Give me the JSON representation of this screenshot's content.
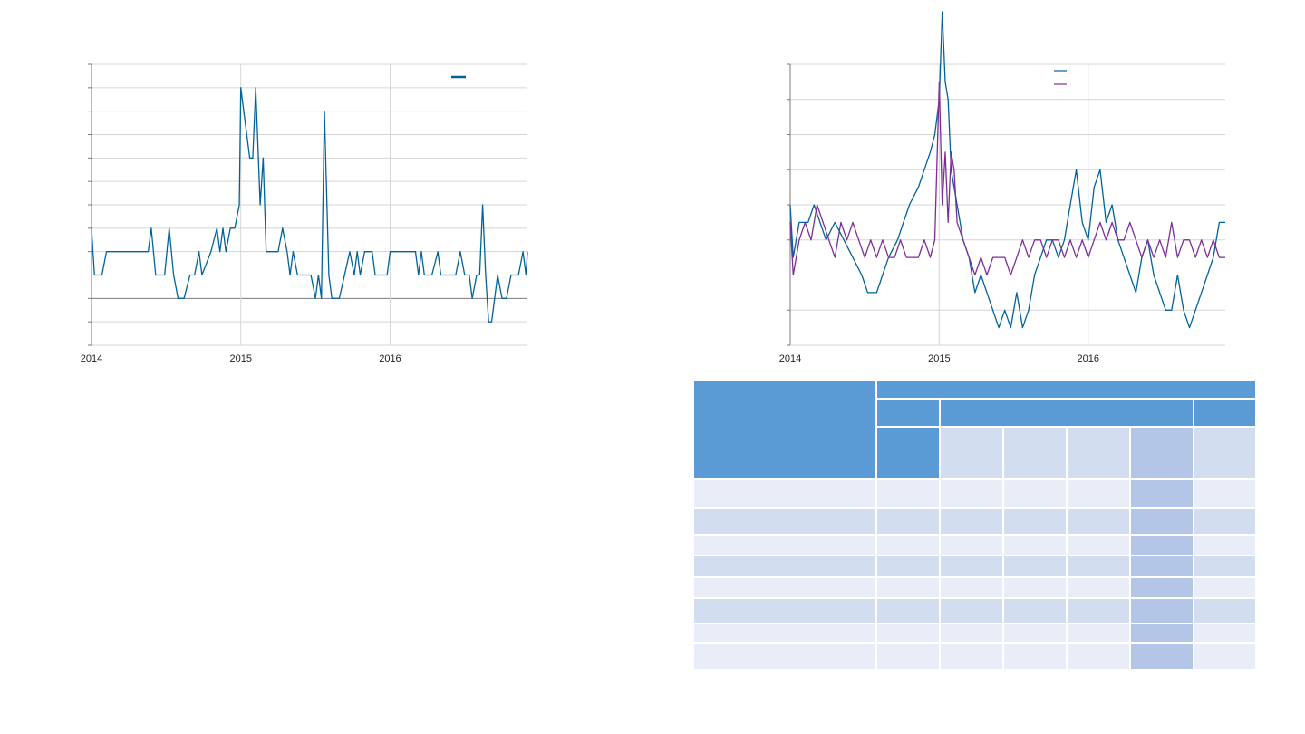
{
  "colors": {
    "line_primary": "#00629b",
    "line_secondary": "#7b2d9b",
    "grid": "#d6d6d6",
    "table_header": "#5b9bd5",
    "table_sub": "#d2deef",
    "table_light": "#e9edf7",
    "table_highlight": "#b4c6e7"
  },
  "chart_data": [
    {
      "type": "line",
      "grid": true,
      "legend_position": "top-right",
      "x_ticks": [
        "2014",
        "2015",
        "2016"
      ],
      "x_range": [
        2014.0,
        2016.92
      ],
      "y_range": [
        -2,
        10
      ],
      "y_ticks": [
        -2,
        -1,
        0,
        1,
        2,
        3,
        4,
        5,
        6,
        7,
        8,
        9,
        10
      ],
      "series": [
        {
          "color": "#00629b",
          "points": [
            [
              2014.0,
              3
            ],
            [
              2014.01,
              2
            ],
            [
              2014.02,
              1
            ],
            [
              2014.07,
              1
            ],
            [
              2014.1,
              2
            ],
            [
              2014.38,
              2
            ],
            [
              2014.4,
              3
            ],
            [
              2014.43,
              1
            ],
            [
              2014.49,
              1
            ],
            [
              2014.52,
              3
            ],
            [
              2014.55,
              1
            ],
            [
              2014.58,
              0
            ],
            [
              2014.62,
              0
            ],
            [
              2014.66,
              1
            ],
            [
              2014.69,
              1
            ],
            [
              2014.72,
              2
            ],
            [
              2014.74,
              1
            ],
            [
              2014.8,
              2
            ],
            [
              2014.84,
              3
            ],
            [
              2014.86,
              2
            ],
            [
              2014.88,
              3
            ],
            [
              2014.9,
              2
            ],
            [
              2014.93,
              3
            ],
            [
              2014.96,
              3
            ],
            [
              2014.99,
              4
            ],
            [
              2015.0,
              9
            ],
            [
              2015.04,
              7
            ],
            [
              2015.06,
              6
            ],
            [
              2015.08,
              6
            ],
            [
              2015.1,
              9
            ],
            [
              2015.13,
              4
            ],
            [
              2015.15,
              6
            ],
            [
              2015.17,
              2
            ],
            [
              2015.25,
              2
            ],
            [
              2015.28,
              3
            ],
            [
              2015.31,
              2
            ],
            [
              2015.33,
              1
            ],
            [
              2015.35,
              2
            ],
            [
              2015.38,
              1
            ],
            [
              2015.43,
              1
            ],
            [
              2015.47,
              1
            ],
            [
              2015.5,
              0
            ],
            [
              2015.52,
              1
            ],
            [
              2015.54,
              0
            ],
            [
              2015.56,
              8
            ],
            [
              2015.59,
              1
            ],
            [
              2015.61,
              0
            ],
            [
              2015.66,
              0
            ],
            [
              2015.73,
              2
            ],
            [
              2015.76,
              1
            ],
            [
              2015.78,
              2
            ],
            [
              2015.8,
              1
            ],
            [
              2015.83,
              2
            ],
            [
              2015.88,
              2
            ],
            [
              2015.9,
              1
            ],
            [
              2015.98,
              1
            ],
            [
              2016.0,
              2
            ],
            [
              2016.17,
              2
            ],
            [
              2016.19,
              1
            ],
            [
              2016.21,
              2
            ],
            [
              2016.23,
              1
            ],
            [
              2016.28,
              1
            ],
            [
              2016.32,
              2
            ],
            [
              2016.34,
              1
            ],
            [
              2016.4,
              1
            ],
            [
              2016.44,
              1
            ],
            [
              2016.47,
              2
            ],
            [
              2016.5,
              1
            ],
            [
              2016.53,
              1
            ],
            [
              2016.55,
              0
            ],
            [
              2016.58,
              1
            ],
            [
              2016.6,
              1
            ],
            [
              2016.62,
              4
            ],
            [
              2016.64,
              1
            ],
            [
              2016.66,
              -1
            ],
            [
              2016.68,
              -1
            ],
            [
              2016.72,
              1
            ],
            [
              2016.75,
              0
            ],
            [
              2016.78,
              0
            ],
            [
              2016.81,
              1
            ],
            [
              2016.86,
              1
            ],
            [
              2016.89,
              2
            ],
            [
              2016.91,
              1
            ],
            [
              2016.92,
              2
            ]
          ]
        }
      ]
    },
    {
      "type": "line",
      "grid": true,
      "legend_position": "top-right",
      "x_ticks": [
        "2014",
        "2015",
        "2016"
      ],
      "x_range": [
        2014.0,
        2016.92
      ],
      "y_range": [
        -2,
        6
      ],
      "y_ticks": [
        -2,
        -1,
        0,
        1,
        2,
        3,
        4,
        5,
        6
      ],
      "series": [
        {
          "color": "#00629b",
          "points": [
            [
              2014.0,
              2
            ],
            [
              2014.02,
              0.5
            ],
            [
              2014.06,
              1.5
            ],
            [
              2014.12,
              1.5
            ],
            [
              2014.16,
              2
            ],
            [
              2014.2,
              1.5
            ],
            [
              2014.24,
              1
            ],
            [
              2014.3,
              1.5
            ],
            [
              2014.36,
              1
            ],
            [
              2014.42,
              0.5
            ],
            [
              2014.48,
              0
            ],
            [
              2014.52,
              -0.5
            ],
            [
              2014.58,
              -0.5
            ],
            [
              2014.62,
              0
            ],
            [
              2014.66,
              0.5
            ],
            [
              2014.72,
              1
            ],
            [
              2014.76,
              1.5
            ],
            [
              2014.8,
              2
            ],
            [
              2014.86,
              2.5
            ],
            [
              2014.9,
              3
            ],
            [
              2014.94,
              3.5
            ],
            [
              2014.97,
              4
            ],
            [
              2015.0,
              5
            ],
            [
              2015.02,
              7.5
            ],
            [
              2015.04,
              5.5
            ],
            [
              2015.06,
              5
            ],
            [
              2015.08,
              3
            ],
            [
              2015.12,
              2
            ],
            [
              2015.16,
              1
            ],
            [
              2015.2,
              0.5
            ],
            [
              2015.24,
              -0.5
            ],
            [
              2015.28,
              0
            ],
            [
              2015.32,
              -0.5
            ],
            [
              2015.36,
              -1
            ],
            [
              2015.4,
              -1.5
            ],
            [
              2015.44,
              -1
            ],
            [
              2015.48,
              -1.5
            ],
            [
              2015.52,
              -0.5
            ],
            [
              2015.56,
              -1.5
            ],
            [
              2015.6,
              -1
            ],
            [
              2015.64,
              0
            ],
            [
              2015.68,
              0.5
            ],
            [
              2015.72,
              1
            ],
            [
              2015.76,
              1
            ],
            [
              2015.8,
              0.5
            ],
            [
              2015.84,
              1
            ],
            [
              2015.88,
              2
            ],
            [
              2015.92,
              3
            ],
            [
              2015.96,
              1.5
            ],
            [
              2016.0,
              1
            ],
            [
              2016.04,
              2.5
            ],
            [
              2016.08,
              3
            ],
            [
              2016.12,
              1.5
            ],
            [
              2016.16,
              2
            ],
            [
              2016.2,
              1
            ],
            [
              2016.24,
              0.5
            ],
            [
              2016.28,
              0
            ],
            [
              2016.32,
              -0.5
            ],
            [
              2016.36,
              0.5
            ],
            [
              2016.4,
              1
            ],
            [
              2016.44,
              0
            ],
            [
              2016.48,
              -0.5
            ],
            [
              2016.52,
              -1
            ],
            [
              2016.56,
              -1
            ],
            [
              2016.6,
              0
            ],
            [
              2016.64,
              -1
            ],
            [
              2016.68,
              -1.5
            ],
            [
              2016.72,
              -1
            ],
            [
              2016.76,
              -0.5
            ],
            [
              2016.8,
              0
            ],
            [
              2016.84,
              0.5
            ],
            [
              2016.88,
              1.5
            ],
            [
              2016.92,
              1.5
            ]
          ]
        },
        {
          "color": "#7b2d9b",
          "points": [
            [
              2014.0,
              1.5
            ],
            [
              2014.02,
              0
            ],
            [
              2014.06,
              1
            ],
            [
              2014.1,
              1.5
            ],
            [
              2014.14,
              1
            ],
            [
              2014.18,
              2
            ],
            [
              2014.22,
              1.5
            ],
            [
              2014.26,
              1
            ],
            [
              2014.3,
              0.5
            ],
            [
              2014.34,
              1.5
            ],
            [
              2014.38,
              1
            ],
            [
              2014.42,
              1.5
            ],
            [
              2014.46,
              1
            ],
            [
              2014.5,
              0.5
            ],
            [
              2014.54,
              1
            ],
            [
              2014.58,
              0.5
            ],
            [
              2014.62,
              1
            ],
            [
              2014.66,
              0.5
            ],
            [
              2014.7,
              0.5
            ],
            [
              2014.74,
              1
            ],
            [
              2014.78,
              0.5
            ],
            [
              2014.82,
              0.5
            ],
            [
              2014.86,
              0.5
            ],
            [
              2014.9,
              1
            ],
            [
              2014.94,
              0.5
            ],
            [
              2014.97,
              1
            ],
            [
              2015.0,
              5.5
            ],
            [
              2015.02,
              2
            ],
            [
              2015.04,
              3.5
            ],
            [
              2015.06,
              1.5
            ],
            [
              2015.08,
              3.5
            ],
            [
              2015.1,
              3
            ],
            [
              2015.12,
              1.5
            ],
            [
              2015.16,
              1
            ],
            [
              2015.2,
              0.5
            ],
            [
              2015.24,
              0
            ],
            [
              2015.28,
              0.5
            ],
            [
              2015.32,
              0
            ],
            [
              2015.36,
              0.5
            ],
            [
              2015.4,
              0.5
            ],
            [
              2015.44,
              0.5
            ],
            [
              2015.48,
              0
            ],
            [
              2015.52,
              0.5
            ],
            [
              2015.56,
              1
            ],
            [
              2015.6,
              0.5
            ],
            [
              2015.64,
              1
            ],
            [
              2015.68,
              1
            ],
            [
              2015.72,
              0.5
            ],
            [
              2015.76,
              1
            ],
            [
              2015.8,
              1
            ],
            [
              2015.84,
              0.5
            ],
            [
              2015.88,
              1
            ],
            [
              2015.92,
              0.5
            ],
            [
              2015.96,
              1
            ],
            [
              2016.0,
              0.5
            ],
            [
              2016.04,
              1
            ],
            [
              2016.08,
              1.5
            ],
            [
              2016.12,
              1
            ],
            [
              2016.16,
              1.5
            ],
            [
              2016.2,
              1
            ],
            [
              2016.24,
              1
            ],
            [
              2016.28,
              1.5
            ],
            [
              2016.32,
              1
            ],
            [
              2016.36,
              0.5
            ],
            [
              2016.4,
              1
            ],
            [
              2016.44,
              0.5
            ],
            [
              2016.48,
              1
            ],
            [
              2016.52,
              0.5
            ],
            [
              2016.56,
              1.5
            ],
            [
              2016.6,
              0.5
            ],
            [
              2016.64,
              1
            ],
            [
              2016.68,
              1
            ],
            [
              2016.72,
              0.5
            ],
            [
              2016.76,
              1
            ],
            [
              2016.8,
              0.5
            ],
            [
              2016.84,
              1
            ],
            [
              2016.88,
              0.5
            ],
            [
              2016.92,
              0.5
            ]
          ]
        }
      ]
    }
  ],
  "table": {
    "column_count": 7,
    "highlight_column": 5,
    "body_row_count": 8
  }
}
